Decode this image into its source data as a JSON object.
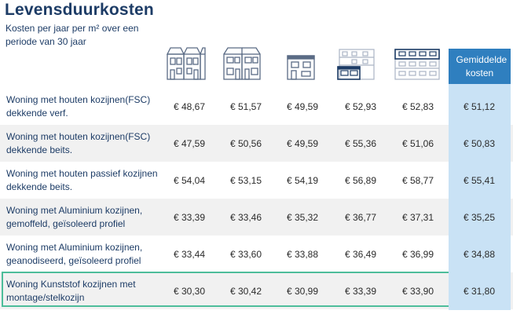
{
  "title": "Levensduurkosten",
  "subtitle": "Kosten per jaar per m² over een periode van 30 jaar",
  "columns": {
    "icons": [
      "terraced-houses-icon",
      "semi-detached-houses-icon",
      "detached-house-icon",
      "apartment-block-icon",
      "flat-building-icon"
    ],
    "average_label": "Gemiddelde kosten"
  },
  "rows": [
    {
      "label": "Woning met houten kozijnen(FSC) dekkende verf.",
      "values": [
        "€ 48,67",
        "€ 51,57",
        "€ 49,59",
        "€ 52,93",
        "€ 52,83"
      ],
      "average": "€ 51,12"
    },
    {
      "label": "Woning met houten kozijnen(FSC) dekkende beits.",
      "values": [
        "€ 47,59",
        "€ 50,56",
        "€ 49,59",
        "€ 55,36",
        "€ 51,06"
      ],
      "average": "€ 50,83"
    },
    {
      "label": "Woning met houten passief kozijnen dekkende beits.",
      "values": [
        "€ 54,04",
        "€ 53,15",
        "€ 54,19",
        "€ 56,89",
        "€ 58,77"
      ],
      "average": "€ 55,41"
    },
    {
      "label": "Woning met Aluminium kozijnen, gemoffeld, geïsoleerd profiel",
      "values": [
        "€ 33,39",
        "€ 33,46",
        "€ 35,32",
        "€ 36,77",
        "€ 37,31"
      ],
      "average": "€ 35,25"
    },
    {
      "label": "Woning met Aluminium kozijnen, geanodiseerd, geïsoleerd profiel",
      "values": [
        "€ 33,44",
        "€ 33,60",
        "€ 33,88",
        "€ 36,49",
        "€ 36,99"
      ],
      "average": "€ 34,88"
    },
    {
      "label": "Woning Kunststof kozijnen met montage/stelkozijn",
      "values": [
        "€ 30,30",
        "€ 30,42",
        "€ 30,99",
        "€ 33,39",
        "€ 33,90"
      ],
      "average": "€ 31,80",
      "highlighted": true
    }
  ],
  "colors": {
    "navy": "#1d3c66",
    "avg_header": "#2f7fbf",
    "avg_column": "#c9e2f5",
    "highlight_border": "#4dbd9a",
    "row_shade": "#f1f1f1"
  }
}
